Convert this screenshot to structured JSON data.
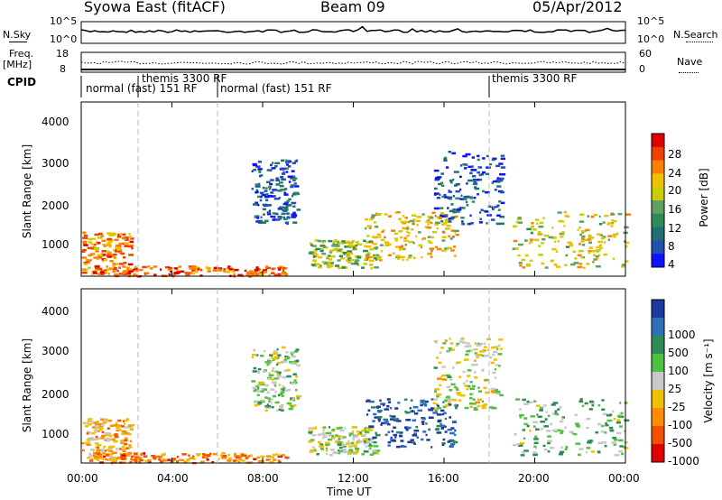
{
  "header": {
    "station": "Syowa East (fitACF)",
    "beam": "Beam 09",
    "date": "05/Apr/2012"
  },
  "noise_panel": {
    "left_label": "N.Sky",
    "right_label": "N.Search",
    "left_ticks": [
      "10^5",
      "10^0"
    ],
    "right_ticks": [
      "10^5",
      "10^0"
    ]
  },
  "freq_panel": {
    "left_label_1": "Freq.",
    "left_label_2": "[MHz]",
    "right_label": "Nave",
    "left_ticks": [
      "18",
      "8"
    ],
    "right_ticks": [
      "60",
      "0"
    ]
  },
  "cpid": {
    "label": "CPID",
    "segments": [
      {
        "label": "normal (fast) 151 RF",
        "start_hour": 0,
        "end_hour": 2.5
      },
      {
        "label": "themis 3300 RF",
        "start_hour": 2.5,
        "end_hour": 6
      },
      {
        "label": "normal (fast) 151 RF",
        "start_hour": 6,
        "end_hour": 18
      },
      {
        "label": "themis 3300 RF",
        "start_hour": 18,
        "end_hour": 24
      }
    ]
  },
  "axes": {
    "xlabel": "Time UT",
    "ylabel": "Slant Range [km]",
    "x_ticks": [
      "00:00",
      "04:00",
      "08:00",
      "12:00",
      "16:00",
      "20:00",
      "00:00"
    ],
    "y_ticks": [
      "1000",
      "2000",
      "3000",
      "4000"
    ]
  },
  "power_bar": {
    "label": "Power [dB]",
    "ticks": [
      "28",
      "24",
      "20",
      "16",
      "12",
      "8",
      "4"
    ],
    "colors": [
      "#e00000",
      "#f04000",
      "#ff8000",
      "#f0c000",
      "#c8d000",
      "#60a060",
      "#2e8b57",
      "#207070",
      "#2050b0",
      "#1010ff"
    ]
  },
  "velocity_bar": {
    "label": "Velocity [m s⁻¹]",
    "ticks": [
      "1000",
      "500",
      "100",
      "25",
      "-25",
      "-100",
      "-500",
      "-1000"
    ],
    "colors": [
      "#1a3aa0",
      "#2f6fb8",
      "#2e8b57",
      "#50c040",
      "#c8c8c8",
      "#f0c000",
      "#ff8c00",
      "#f05000",
      "#e00000"
    ]
  },
  "chart_data": [
    {
      "type": "heatmap",
      "title": "Power",
      "xlabel": "Time UT",
      "ylabel": "Slant Range [km]",
      "x_range_hours": [
        0,
        24
      ],
      "y_range_km": [
        180,
        4500
      ],
      "colorbar_label": "Power [dB]",
      "colorbar_range": [
        0,
        32
      ],
      "regions": [
        {
          "t0": 0.0,
          "t1": 2.2,
          "r0": 250,
          "r1": 1300,
          "v": 24
        },
        {
          "t0": 0.5,
          "t1": 9.0,
          "r0": 200,
          "r1": 450,
          "v": 26
        },
        {
          "t0": 7.5,
          "t1": 9.5,
          "r0": 1500,
          "r1": 3100,
          "v": 6
        },
        {
          "t0": 10.0,
          "t1": 13.0,
          "r0": 400,
          "r1": 1100,
          "v": 16
        },
        {
          "t0": 12.5,
          "t1": 16.5,
          "r0": 600,
          "r1": 1800,
          "v": 20
        },
        {
          "t0": 15.5,
          "t1": 18.5,
          "r0": 1500,
          "r1": 3300,
          "v": 5
        },
        {
          "t0": 19.0,
          "t1": 24.0,
          "r0": 400,
          "r1": 1800,
          "v": 18
        }
      ]
    },
    {
      "type": "heatmap",
      "title": "Velocity",
      "xlabel": "Time UT",
      "ylabel": "Slant Range [km]",
      "x_range_hours": [
        0,
        24
      ],
      "y_range_km": [
        180,
        4500
      ],
      "colorbar_label": "Velocity [m s⁻¹]",
      "colorbar_range": [
        -1000,
        1000
      ],
      "regions": [
        {
          "t0": 0.0,
          "t1": 2.2,
          "r0": 250,
          "r1": 1300,
          "v": -300
        },
        {
          "t0": 0.5,
          "t1": 9.0,
          "r0": 200,
          "r1": 450,
          "v": -500
        },
        {
          "t0": 7.5,
          "t1": 9.5,
          "r0": 1500,
          "r1": 3100,
          "v": 100
        },
        {
          "t0": 10.0,
          "t1": 13.0,
          "r0": 400,
          "r1": 1100,
          "v": 50
        },
        {
          "t0": 12.5,
          "t1": 16.5,
          "r0": 600,
          "r1": 1800,
          "v": 800
        },
        {
          "t0": 15.5,
          "t1": 18.5,
          "r0": 1500,
          "r1": 3300,
          "v": 0
        },
        {
          "t0": 19.0,
          "t1": 24.0,
          "r0": 400,
          "r1": 1800,
          "v": 200
        }
      ]
    }
  ]
}
